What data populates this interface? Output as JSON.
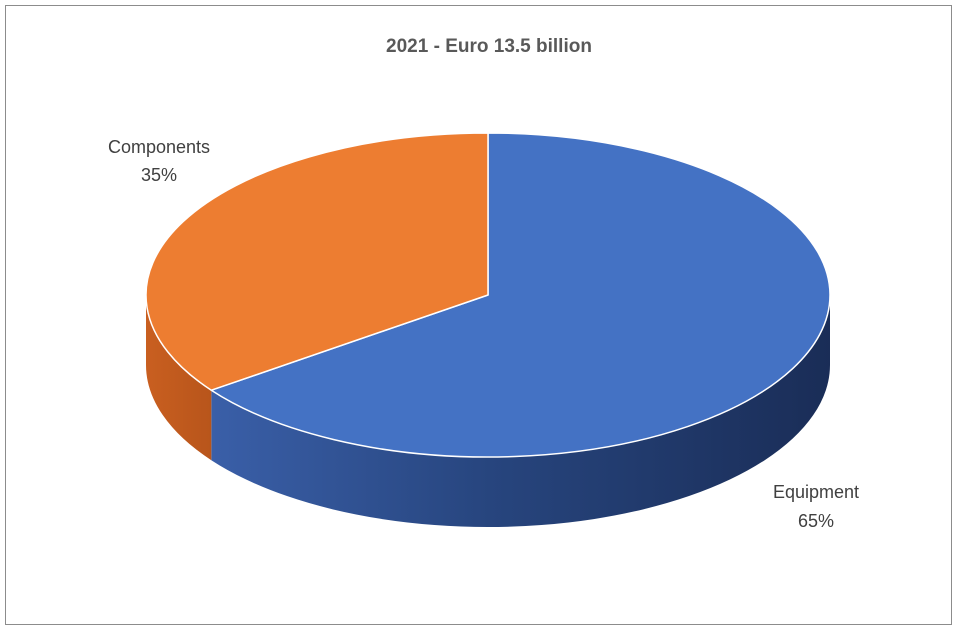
{
  "chart_data": {
    "type": "pie",
    "title": "2021 - Euro 13.5 billion",
    "categories": [
      "Equipment",
      "Components"
    ],
    "values": [
      65,
      35
    ],
    "value_labels": [
      "65%",
      "35%"
    ],
    "colors": {
      "Equipment": "#4472c4",
      "Components": "#ed7d31"
    },
    "legend": "none",
    "style": "3d-pie"
  }
}
